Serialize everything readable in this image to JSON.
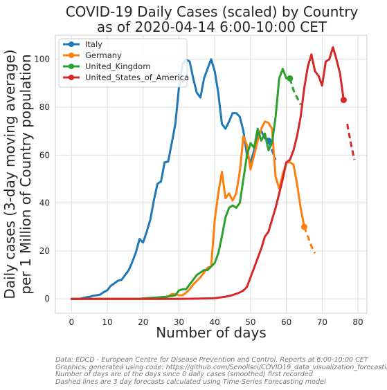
{
  "chart_data": {
    "type": "line",
    "title": [
      "COVID-19 Daily Cases (scaled) by Country",
      "as of 2020-04-14 6:00-10:00 CET"
    ],
    "xlabel": "Number of days",
    "ylabel": [
      "Daily cases (3-day moving average)",
      "per 1 Million of Country population"
    ],
    "xlim": [
      -4.5,
      82.5
    ],
    "ylim": [
      -6,
      110
    ],
    "xticks": [
      0,
      10,
      20,
      30,
      40,
      50,
      60,
      70,
      80
    ],
    "yticks": [
      0,
      20,
      40,
      60,
      80,
      100
    ],
    "grid": true,
    "legend_position": "top-left",
    "series": [
      {
        "name": "Italy",
        "color": "#1f77b4",
        "x": [
          0,
          1,
          2,
          3,
          4,
          5,
          6,
          7,
          8,
          9,
          10,
          11,
          12,
          13,
          14,
          15,
          16,
          17,
          18,
          19,
          20,
          21,
          22,
          23,
          24,
          25,
          26,
          27,
          28,
          29,
          30,
          31,
          32,
          33,
          34,
          35,
          36,
          37,
          38,
          39,
          40,
          41,
          42,
          43,
          44,
          45,
          46,
          47,
          48,
          49,
          50,
          51,
          52,
          53,
          54,
          55
        ],
        "y": [
          0,
          0,
          0,
          0.3,
          0.6,
          0.8,
          1.3,
          1.5,
          1.8,
          2.8,
          3.6,
          5.5,
          6.5,
          7.6,
          8,
          10,
          12,
          15.5,
          19.5,
          25,
          23.5,
          28,
          33,
          41,
          48,
          49,
          57,
          57.3,
          65,
          73,
          88,
          98,
          100,
          99,
          92,
          86,
          84,
          92,
          96,
          100,
          95,
          86,
          73,
          71,
          74,
          77.5,
          77.5,
          76,
          70,
          60,
          57,
          62,
          69,
          70,
          67,
          66
        ],
        "forecast_x": [
          55,
          56,
          57
        ],
        "forecast_y": [
          66,
          62,
          58
        ],
        "last_point": [
          55,
          66
        ]
      },
      {
        "name": "Germany",
        "color": "#ff7f0e",
        "x": [
          0,
          1,
          2,
          3,
          4,
          5,
          6,
          7,
          8,
          9,
          10,
          11,
          12,
          13,
          14,
          15,
          16,
          17,
          18,
          19,
          20,
          21,
          22,
          23,
          24,
          25,
          26,
          27,
          28,
          29,
          30,
          31,
          32,
          33,
          34,
          35,
          36,
          37,
          38,
          39,
          40,
          41,
          42,
          43,
          44,
          45,
          46,
          47,
          48,
          49,
          50,
          51,
          52,
          53,
          54,
          55,
          56,
          57,
          58,
          59,
          60,
          61,
          62,
          63,
          64,
          65
        ],
        "y": [
          0,
          0,
          0,
          0,
          0,
          0,
          0,
          0,
          0,
          0,
          0,
          0,
          0,
          0,
          0,
          0,
          0,
          0,
          0,
          0,
          0,
          0,
          0,
          0,
          0,
          0,
          0.5,
          1,
          2,
          2,
          1.5,
          1.5,
          2.5,
          4,
          6,
          7.5,
          9,
          11,
          13,
          13.5,
          33,
          44,
          53,
          42,
          44,
          41,
          44,
          53,
          68,
          64,
          54,
          60,
          66,
          71,
          74,
          73.5,
          71,
          51,
          46,
          52,
          57,
          57,
          56,
          48,
          38,
          30
        ],
        "forecast_x": [
          65,
          66,
          67,
          68
        ],
        "forecast_y": [
          30,
          26,
          22,
          19
        ],
        "last_point": [
          65,
          30
        ]
      },
      {
        "name": "United_Kingdom",
        "color": "#2ca02c",
        "x": [
          0,
          1,
          2,
          3,
          4,
          5,
          6,
          7,
          8,
          9,
          10,
          11,
          12,
          13,
          14,
          15,
          16,
          17,
          18,
          19,
          20,
          21,
          22,
          23,
          24,
          25,
          26,
          27,
          28,
          29,
          30,
          31,
          32,
          33,
          34,
          35,
          36,
          37,
          38,
          39,
          40,
          41,
          42,
          43,
          44,
          45,
          46,
          47,
          48,
          49,
          50,
          51,
          52,
          53,
          54,
          55,
          56,
          57,
          58,
          59,
          60,
          61
        ],
        "y": [
          0,
          0,
          0,
          0,
          0,
          0,
          0,
          0,
          0,
          0,
          0,
          0,
          0,
          0,
          0,
          0,
          0,
          0,
          0,
          0,
          0.2,
          0.3,
          0.4,
          0.5,
          0.6,
          0.7,
          0.8,
          1,
          1.2,
          1.5,
          3.5,
          4,
          4,
          6,
          8,
          10,
          11,
          12,
          12,
          13.5,
          15,
          19,
          26,
          34,
          38,
          39,
          38,
          40,
          50,
          60,
          65,
          63,
          71,
          66,
          69,
          62,
          65,
          76,
          92,
          96,
          92,
          92
        ],
        "forecast_x": [
          61,
          62,
          63,
          64
        ],
        "forecast_y": [
          92,
          87,
          84,
          81
        ],
        "last_point": [
          61,
          92
        ]
      },
      {
        "name": "United_States_of_America",
        "color": "#d62728",
        "x": [
          0,
          5,
          10,
          15,
          20,
          25,
          30,
          35,
          40,
          41,
          42,
          43,
          44,
          45,
          46,
          47,
          48,
          49,
          50,
          51,
          52,
          53,
          54,
          55,
          56,
          57,
          58,
          59,
          60,
          61,
          62,
          63,
          64,
          65,
          66,
          67,
          68,
          69,
          70,
          71,
          72,
          73,
          74,
          75,
          76
        ],
        "y": [
          0,
          0,
          0,
          0,
          0,
          0,
          0,
          0.1,
          0.3,
          0.5,
          0.7,
          0.9,
          1.2,
          1.6,
          2.1,
          2.7,
          3.5,
          5,
          9,
          13,
          17,
          21,
          26,
          28,
          33,
          38,
          44,
          50,
          57,
          58,
          62,
          68,
          76,
          88,
          97,
          102,
          95,
          93,
          89,
          99,
          100,
          105,
          100,
          94,
          83
        ],
        "forecast_x": [
          77,
          78,
          79
        ],
        "forecast_y": [
          73,
          65,
          58
        ],
        "last_point": [
          76,
          83
        ]
      }
    ]
  },
  "footnote": [
    "Data: EDCD - European Centre for Disease Prevention and Control. Reports at 6:00-10:00 CET",
    "Graphics: generated using code: https://github.com/Senollsci/COVID19_data_visualization_forecasting.git",
    "Number of days are of the days since 0 daily cases (smoothed) first recorded",
    "Dashed lines are 3 day forecasts calculated using Time-Series Forecasting model"
  ]
}
